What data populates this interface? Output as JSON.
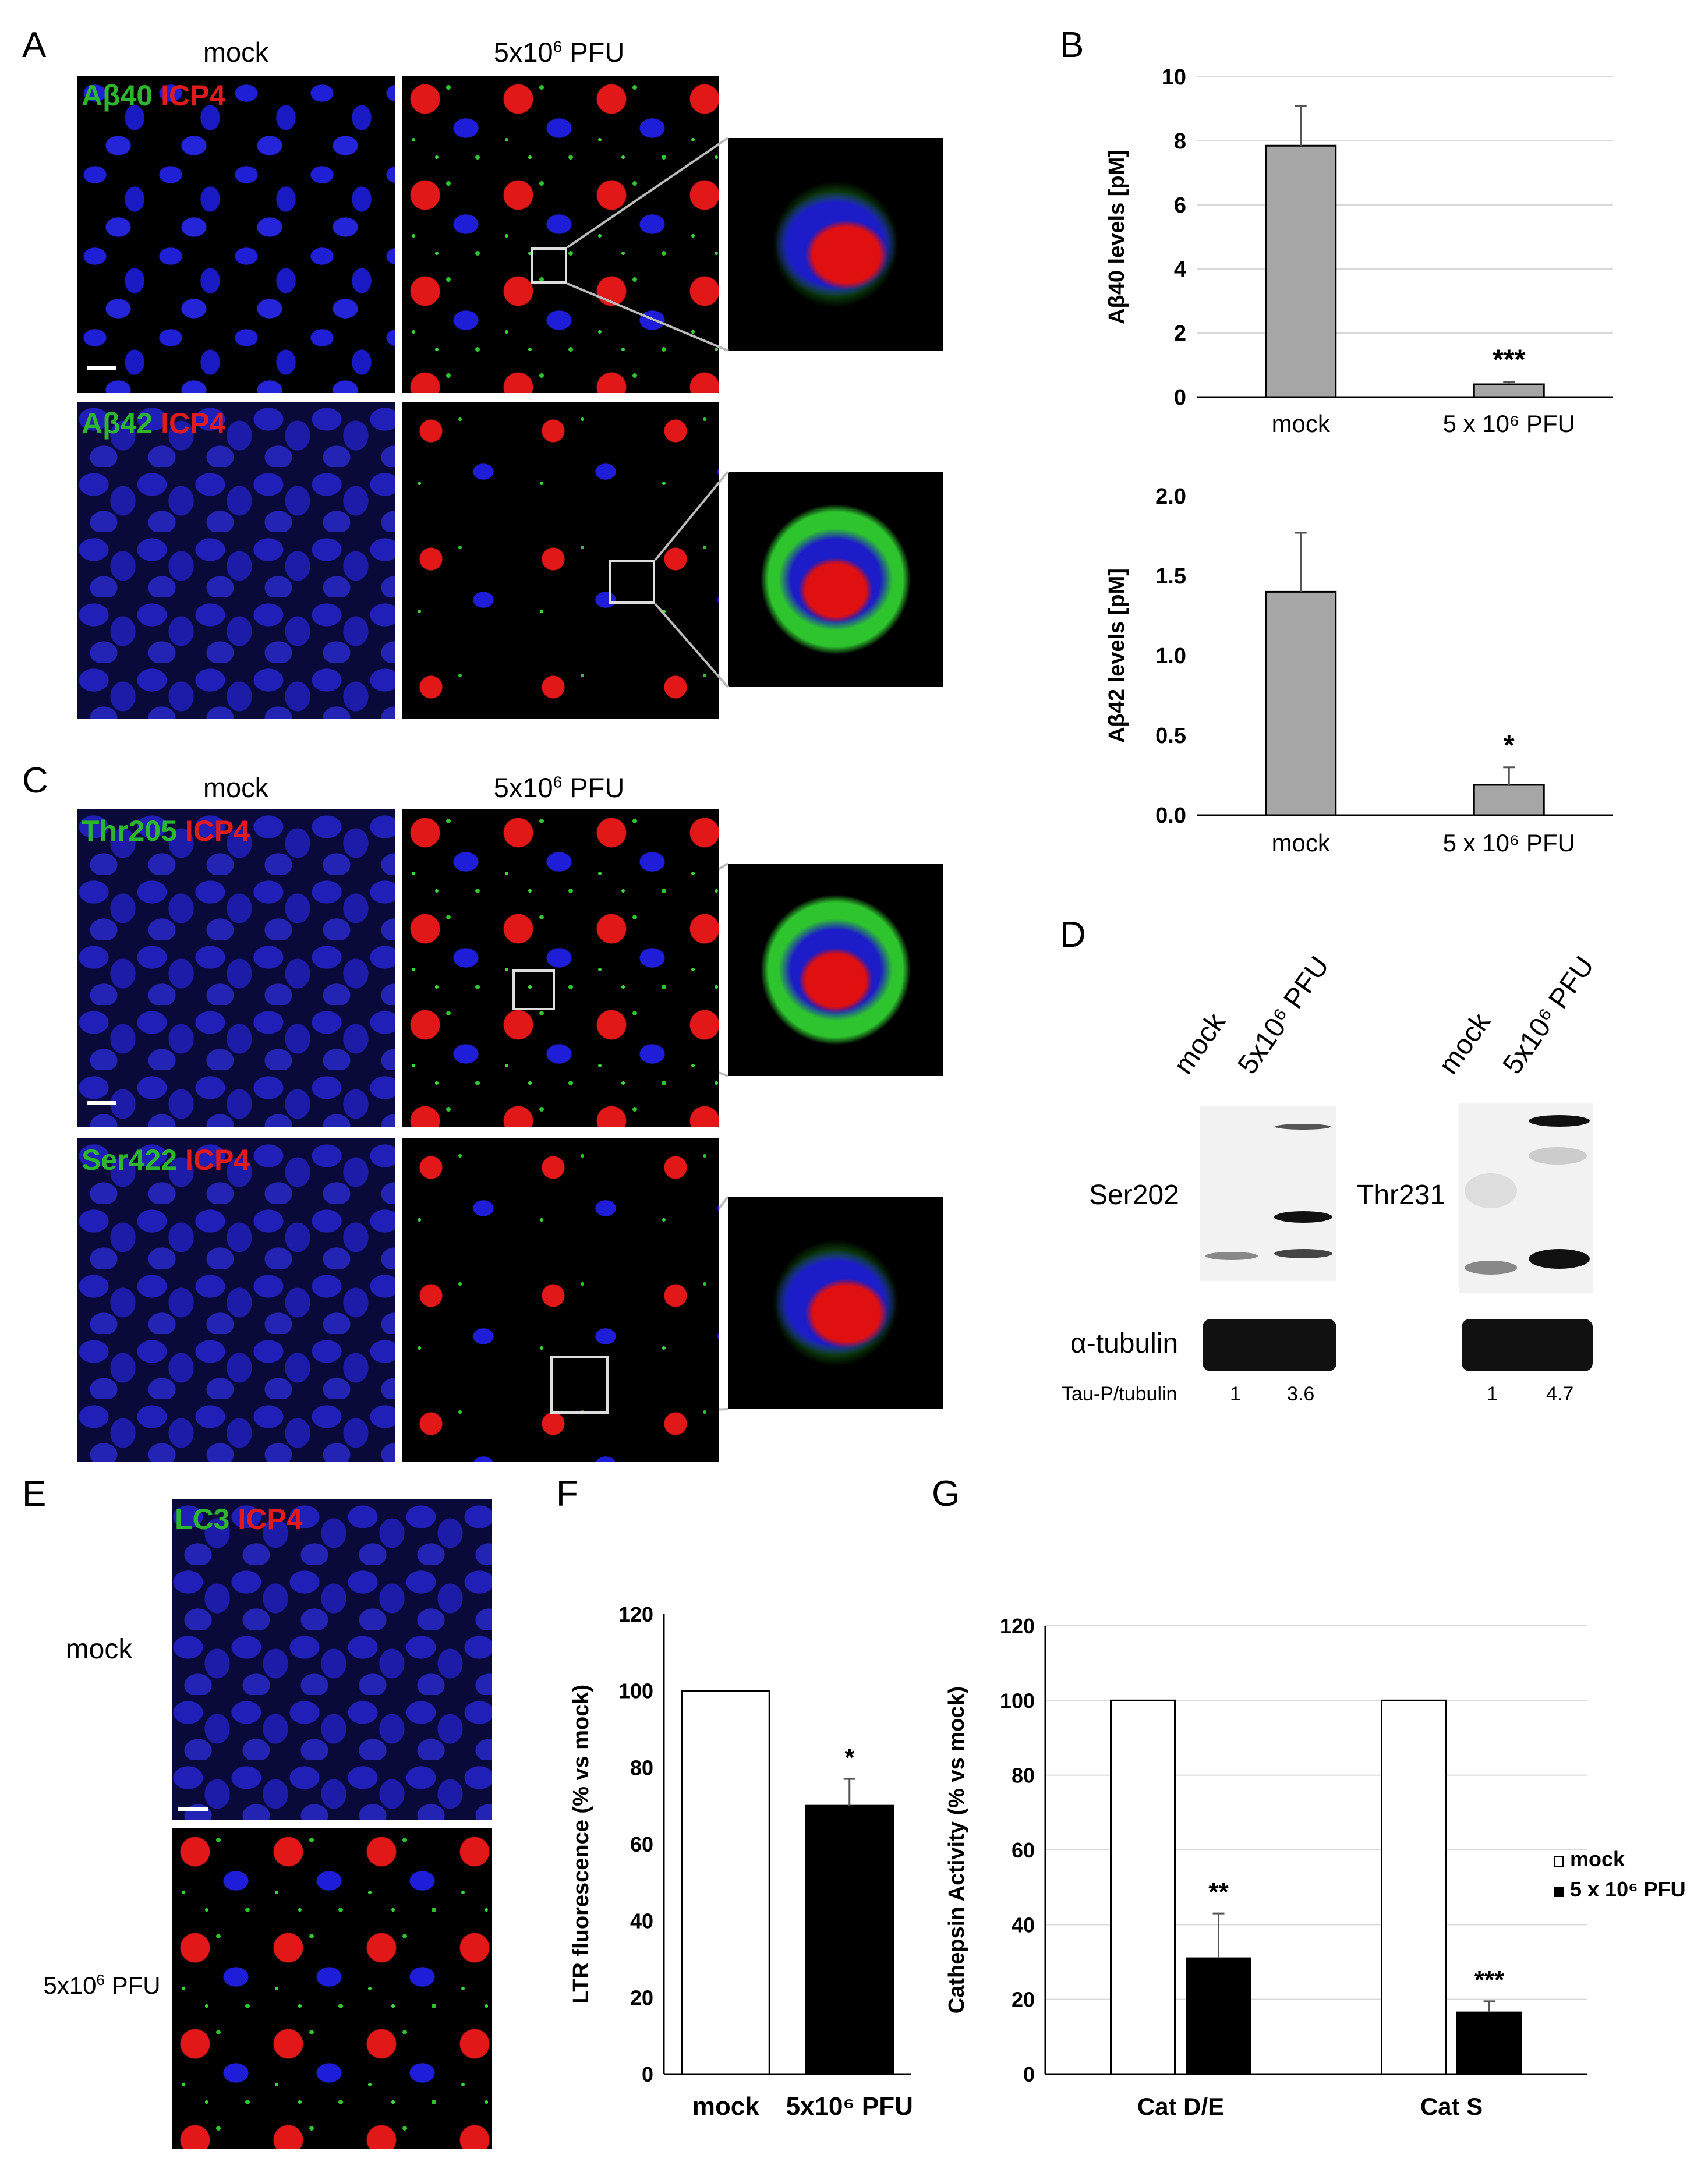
{
  "panels": {
    "A": "A",
    "B": "B",
    "C": "C",
    "D": "D",
    "E": "E",
    "F": "F",
    "G": "G"
  },
  "panel_a": {
    "col_mock": "mock",
    "col_pfu_base": "5x10",
    "col_pfu_exp": "6",
    "col_pfu_tail": " PFU",
    "row1_green": "Aβ40",
    "row1_red": "ICP4",
    "row2_green": "Aβ42",
    "row2_red": "ICP4"
  },
  "panel_c": {
    "col_mock": "mock",
    "col_pfu_base": "5x10",
    "col_pfu_exp": "6",
    "col_pfu_tail": " PFU",
    "row1_green": "Thr205",
    "row1_red": "ICP4",
    "row2_green": "Ser422",
    "row2_red": "ICP4"
  },
  "panel_d": {
    "lane_mock": "mock",
    "lane_pfu": "5x10⁶ PFU",
    "blot1_label": "Ser202",
    "blot2_label": "Thr231",
    "loading_label": "α-tubulin",
    "ratio_label": "Tau-P/tubulin",
    "ratios": [
      "1",
      "3.6",
      "1",
      "4.7"
    ]
  },
  "panel_e": {
    "row_mock": "mock",
    "row_pfu_base": "5x10",
    "row_pfu_exp": "6",
    "row_pfu_tail": " PFU",
    "green": "LC3",
    "red": "ICP4"
  },
  "colors": {
    "green": "#2db52d",
    "red": "#e11b1b",
    "bar_gray": "#a6a6a6",
    "bar_black": "#000000",
    "bar_white": "#ffffff"
  },
  "chart_data": [
    {
      "panel": "B-top",
      "type": "bar",
      "categories": [
        "mock",
        "5 x 10⁶ PFU"
      ],
      "values": [
        7.85,
        0.4
      ],
      "errors": [
        1.25,
        0.08
      ],
      "significance": [
        "",
        "***"
      ],
      "title": "",
      "xlabel": "",
      "ylabel": "Aβ40 levels [pM]",
      "ylim": [
        0,
        10
      ],
      "yticks": [
        "0",
        "2",
        "4",
        "6",
        "8",
        "10"
      ],
      "grid": true,
      "color": "#a6a6a6"
    },
    {
      "panel": "B-bottom",
      "type": "bar",
      "categories": [
        "mock",
        "5 x 10⁶ PFU"
      ],
      "values": [
        1.4,
        0.19
      ],
      "errors": [
        0.37,
        0.11
      ],
      "significance": [
        "",
        "*"
      ],
      "title": "",
      "xlabel": "",
      "ylabel": "Aβ42 levels [pM]",
      "ylim": [
        0,
        2
      ],
      "yticks": [
        "0.0",
        "0.5",
        "1.0",
        "1.5",
        "2.0"
      ],
      "grid": false,
      "color": "#a6a6a6"
    },
    {
      "panel": "F",
      "type": "bar",
      "categories": [
        "mock",
        "5x10⁶ PFU"
      ],
      "values": [
        100,
        70
      ],
      "errors": [
        0,
        7
      ],
      "significance": [
        "",
        "*"
      ],
      "title": "",
      "xlabel": "",
      "ylabel": "LTR fluorescence (% vs mock)",
      "ylim": [
        0,
        120
      ],
      "yticks": [
        "0",
        "20",
        "40",
        "60",
        "80",
        "100",
        "120"
      ],
      "grid": false,
      "colors": [
        "#ffffff",
        "#000000"
      ]
    },
    {
      "panel": "G",
      "type": "bar",
      "categories": [
        "Cat D/E",
        "Cat S"
      ],
      "series": [
        {
          "name": "mock",
          "values": [
            100,
            100
          ],
          "errors": [
            0,
            0
          ],
          "color": "#ffffff"
        },
        {
          "name": "5 x 10⁶ PFU",
          "values": [
            31,
            16.5
          ],
          "errors": [
            12,
            3
          ],
          "color": "#000000"
        }
      ],
      "significance": [
        "**",
        "***"
      ],
      "title": "",
      "xlabel": "",
      "ylabel": "Cathepsin Activity (% vs mock)",
      "ylim": [
        0,
        120
      ],
      "yticks": [
        "0",
        "20",
        "40",
        "60",
        "80",
        "100",
        "120"
      ],
      "grid": true,
      "legend": "right"
    }
  ]
}
